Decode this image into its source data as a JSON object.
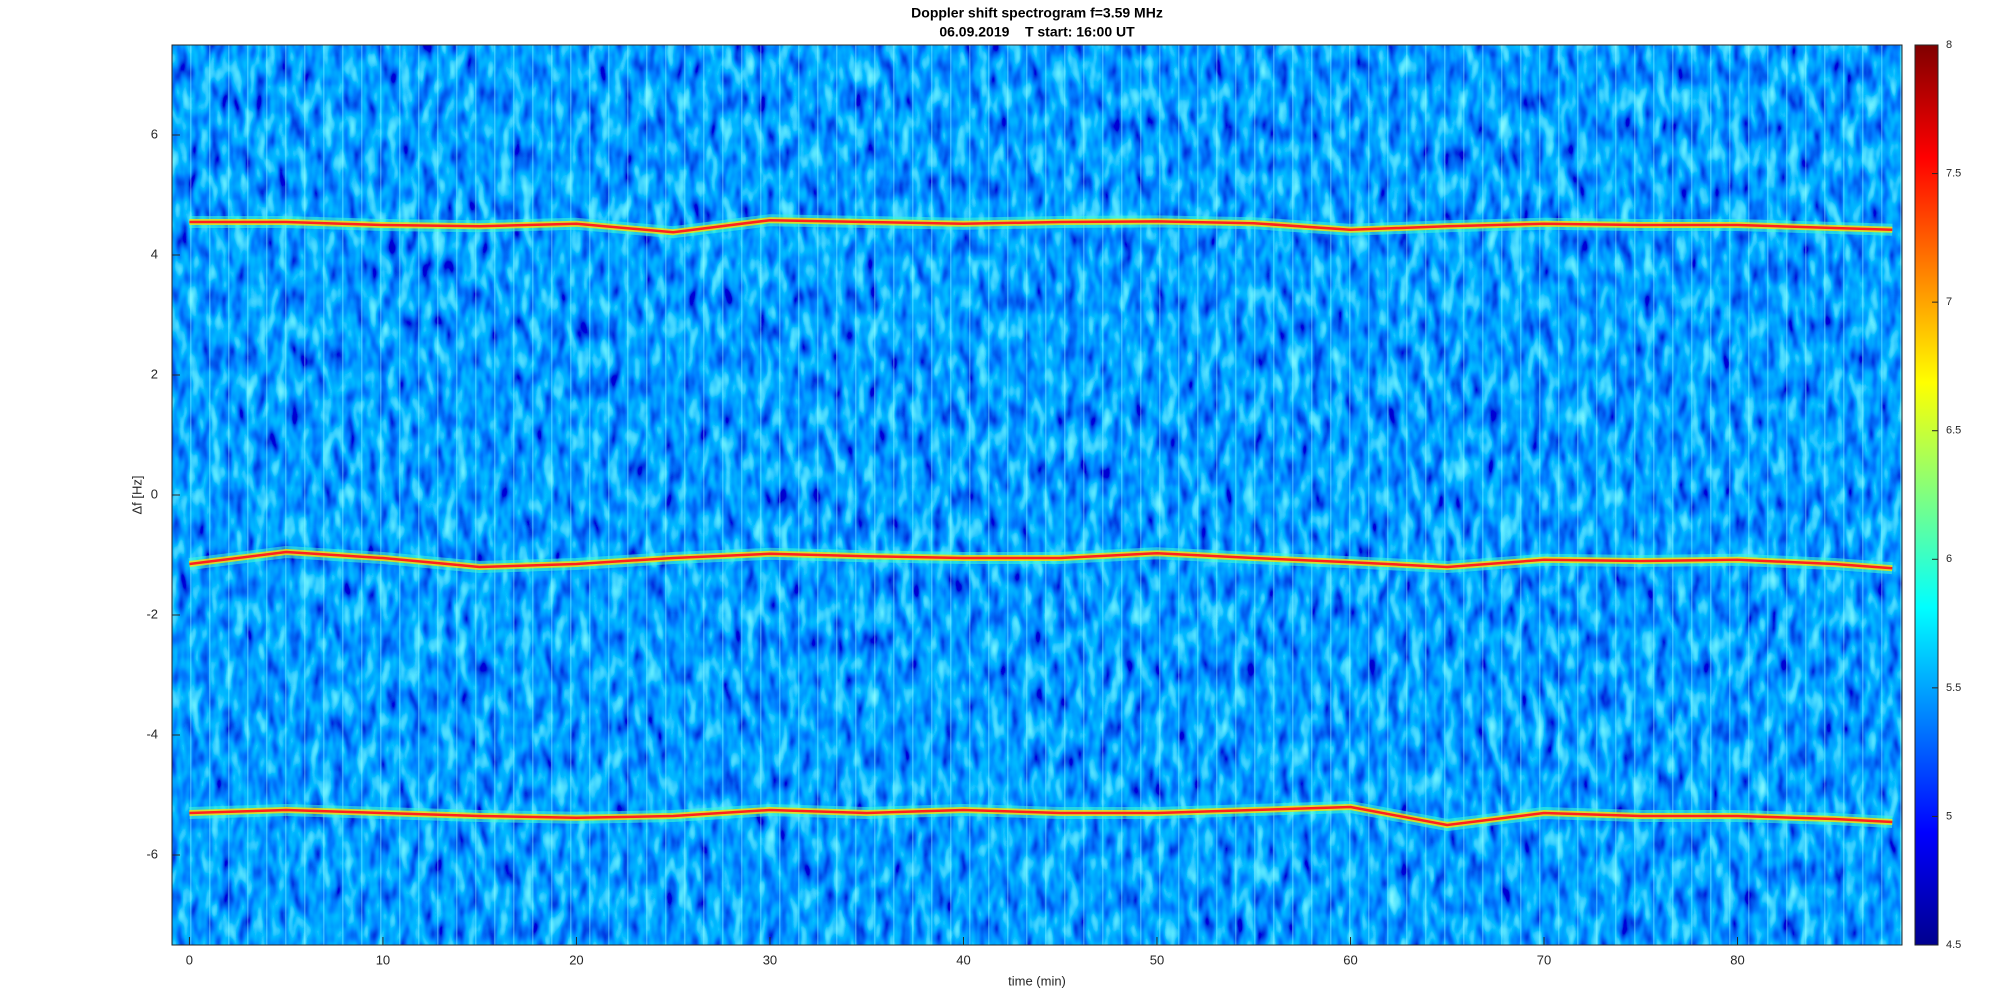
{
  "chart_data": {
    "type": "spectrogram",
    "title": "Doppler shift spectrogram f=3.59 MHz",
    "subtitle": "06.09.2019    T start: 16:00 UT",
    "xlabel": "time (min)",
    "ylabel": "Δf [Hz]",
    "xlim": [
      -0.9,
      88.5
    ],
    "ylim": [
      -7.5,
      7.5
    ],
    "xticks": [
      0,
      10,
      20,
      30,
      40,
      50,
      60,
      70,
      80
    ],
    "yticks": [
      -6,
      -4,
      -2,
      0,
      2,
      4,
      6
    ],
    "clim": [
      4.5,
      8
    ],
    "cticks": [
      4.5,
      5,
      5.5,
      6,
      6.5,
      7,
      7.5,
      8
    ],
    "colormap": [
      "#00008f",
      "#0000ff",
      "#0080ff",
      "#00ffff",
      "#80ff80",
      "#ffff00",
      "#ff8000",
      "#ff0000",
      "#800000"
    ],
    "x": [
      0,
      5,
      10,
      15,
      20,
      25,
      30,
      35,
      40,
      45,
      50,
      55,
      60,
      65,
      70,
      75,
      80,
      85,
      88
    ],
    "series": [
      {
        "color": "#ff2020",
        "values": [
          4.55,
          4.55,
          4.5,
          4.48,
          4.52,
          4.38,
          4.58,
          4.55,
          4.52,
          4.55,
          4.56,
          4.53,
          4.42,
          4.48,
          4.52,
          4.5,
          4.5,
          4.45,
          4.42
        ]
      },
      {
        "color": "#ff2020",
        "values": [
          -1.15,
          -0.95,
          -1.05,
          -1.2,
          -1.15,
          -1.05,
          -0.98,
          -1.02,
          -1.05,
          -1.05,
          -0.97,
          -1.05,
          -1.12,
          -1.2,
          -1.08,
          -1.1,
          -1.08,
          -1.15,
          -1.22
        ]
      },
      {
        "color": "#ff2020",
        "values": [
          -5.3,
          -5.25,
          -5.3,
          -5.35,
          -5.38,
          -5.35,
          -5.25,
          -5.3,
          -5.25,
          -5.3,
          -5.3,
          -5.25,
          -5.2,
          -5.5,
          -5.3,
          -5.35,
          -5.35,
          -5.4,
          -5.45
        ]
      }
    ]
  }
}
